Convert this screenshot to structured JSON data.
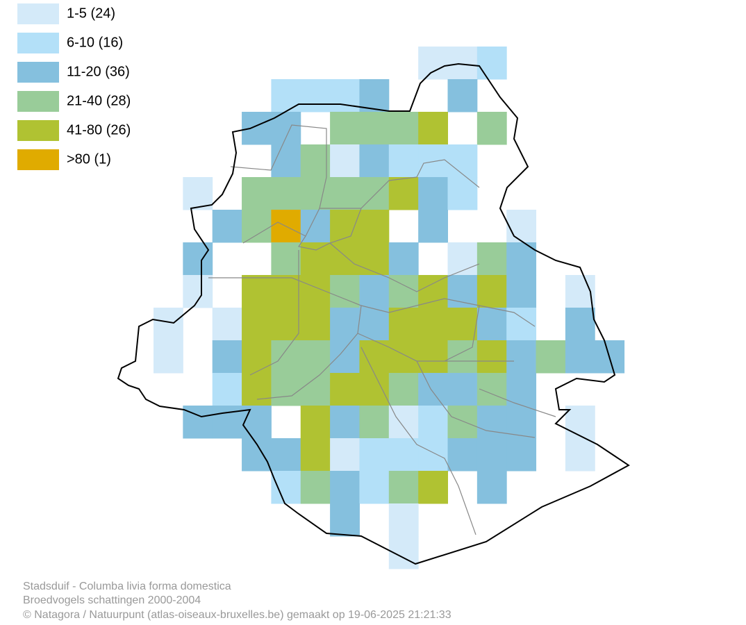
{
  "legend": [
    {
      "label": "1-5 (24)",
      "color": "#d4eaf9"
    },
    {
      "label": "6-10 (16)",
      "color": "#b3e0f8"
    },
    {
      "label": "11-20 (36)",
      "color": "#85c0de"
    },
    {
      "label": "21-40 (28)",
      "color": "#99cc99"
    },
    {
      "label": "41-80 (26)",
      "color": "#b0c232"
    },
    {
      "label": ">80 (1)",
      "color": "#e0ab00"
    }
  ],
  "footer": {
    "species": "Stadsduif - Columba livia forma domestica",
    "dataset": "Broedvogels schattingen 2000-2004",
    "credit": "© Natagora / Natuurpunt (atlas-oiseaux-bruxelles.be) gemaakt op 19-06-2025 21:21:33"
  }
}
